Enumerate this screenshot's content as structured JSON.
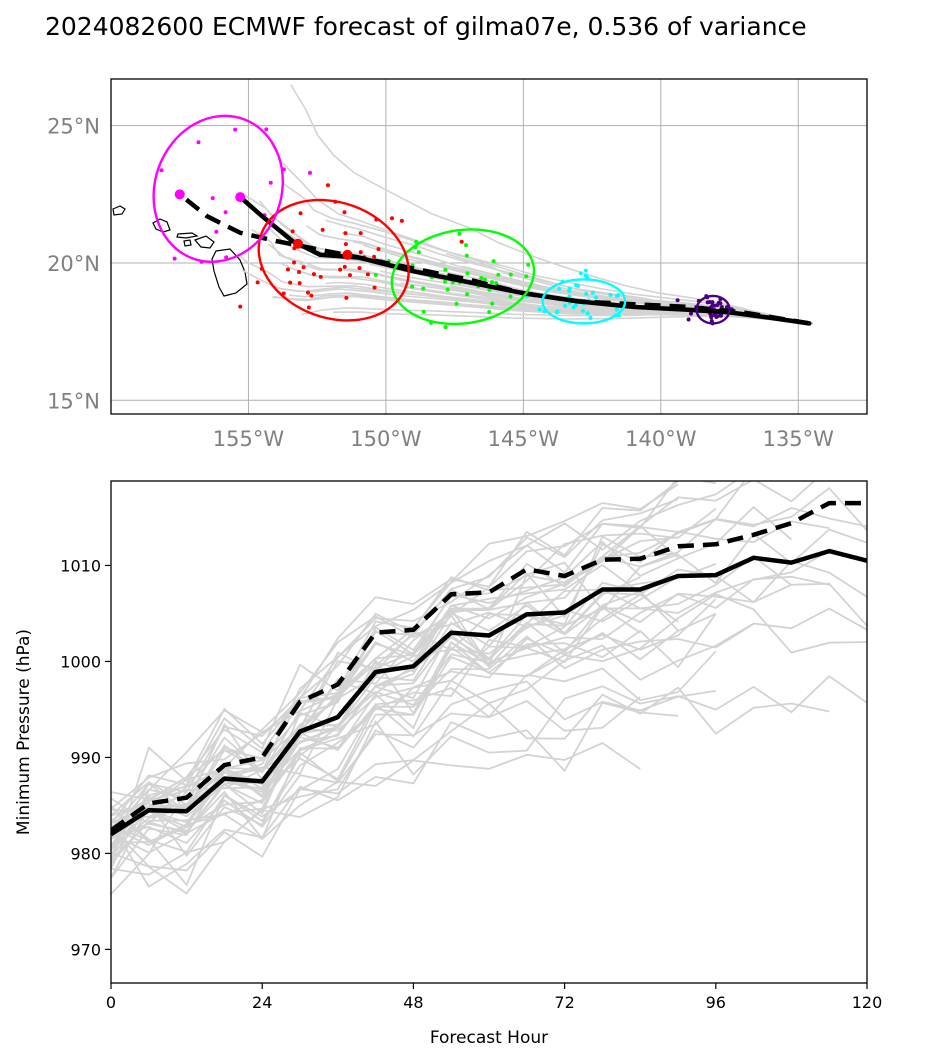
{
  "title": "2024082600 ECMWF forecast of gilma07e, 0.536 of variance",
  "chart_data": [
    {
      "type": "map-tracks",
      "lon_range": [
        -160,
        -132.5
      ],
      "lat_range": [
        14.5,
        26.7
      ],
      "lon_ticks": [
        -155,
        -150,
        -145,
        -140,
        -135
      ],
      "lon_tick_labels": [
        "155°W",
        "150°W",
        "145°W",
        "140°W",
        "135°W"
      ],
      "lat_ticks": [
        15,
        20,
        25
      ],
      "lat_tick_labels": [
        "15°N",
        "20°N",
        "25°N"
      ],
      "grid": true,
      "colors": {
        "ensemble": "#d3d3d3",
        "mean": "#000000",
        "t0": "#4b0082",
        "t1": "#00ffff",
        "t2": "#00ff00",
        "t3": "#ff0000",
        "t4": "#ff00ff"
      },
      "mean_track": [
        [
          -134.6,
          17.8
        ],
        [
          -136,
          18.0
        ],
        [
          -137.5,
          18.2
        ],
        [
          -139,
          18.3
        ],
        [
          -141,
          18.4
        ],
        [
          -143,
          18.6
        ],
        [
          -145,
          18.9
        ],
        [
          -147,
          19.3
        ],
        [
          -149,
          19.7
        ],
        [
          -151,
          20.2
        ],
        [
          -152.4,
          20.3
        ],
        [
          -153.4,
          20.8
        ],
        [
          -154.5,
          21.7
        ],
        [
          -155.3,
          22.4
        ]
      ],
      "dashed_track": [
        [
          -134.6,
          17.8
        ],
        [
          -137,
          18.2
        ],
        [
          -139,
          18.4
        ],
        [
          -141,
          18.5
        ],
        [
          -143,
          18.6
        ],
        [
          -145,
          18.9
        ],
        [
          -147,
          19.4
        ],
        [
          -149,
          19.8
        ],
        [
          -151,
          20.2
        ],
        [
          -152.5,
          20.5
        ],
        [
          -154,
          20.8
        ],
        [
          -155.3,
          21.1
        ],
        [
          -156.5,
          21.7
        ],
        [
          -157.5,
          22.5
        ]
      ],
      "ellipses": [
        {
          "color_key": "t0",
          "lon": -138.1,
          "lat": 18.3,
          "rx_deg": 0.6,
          "ry_deg": 0.5,
          "angle": 0
        },
        {
          "color_key": "t1",
          "lon": -142.8,
          "lat": 18.6,
          "rx_deg": 1.5,
          "ry_deg": 0.8,
          "angle": 0
        },
        {
          "color_key": "t2",
          "lon": -147.2,
          "lat": 19.5,
          "rx_deg": 2.6,
          "ry_deg": 1.7,
          "angle": -8
        },
        {
          "color_key": "t3",
          "lon": -151.9,
          "lat": 20.1,
          "rx_deg": 2.8,
          "ry_deg": 2.1,
          "angle": 20
        },
        {
          "color_key": "t4",
          "lon": -156.1,
          "lat": 22.7,
          "rx_deg": 2.3,
          "ry_deg": 2.7,
          "angle": 20
        }
      ],
      "mean_markers": [
        {
          "color_key": "t3",
          "lon": -153.2,
          "lat": 20.7
        },
        {
          "color_key": "t3",
          "lon": -151.4,
          "lat": 20.3
        },
        {
          "color_key": "t4",
          "lon": -155.3,
          "lat": 22.4
        },
        {
          "color_key": "t4",
          "lon": -157.5,
          "lat": 22.5
        }
      ]
    },
    {
      "type": "line",
      "xlabel": "Forecast Hour",
      "ylabel": "Minimum Pressure (hPa)",
      "xlim": [
        0,
        120
      ],
      "ylim": [
        966.5,
        1018.8
      ],
      "x_ticks": [
        0,
        24,
        48,
        72,
        96,
        120
      ],
      "y_ticks": [
        970,
        980,
        990,
        1000,
        1010
      ],
      "x": [
        0,
        6,
        12,
        18,
        24,
        30,
        36,
        42,
        48,
        54,
        60,
        66,
        72,
        78,
        84,
        90,
        96,
        102,
        108,
        114,
        120
      ],
      "series": [
        {
          "style": "solid",
          "color": "#000000",
          "values": [
            982,
            984.5,
            984.4,
            987.8,
            987.5,
            992.7,
            994.2,
            998.9,
            999.5,
            1003,
            1002.7,
            1004.9,
            1005.1,
            1007.5,
            1007.5,
            1008.9,
            1009,
            1010.8,
            1010.3,
            1011.5,
            1010.5
          ]
        },
        {
          "style": "dashed",
          "color": "#000000",
          "values": [
            982.4,
            985.2,
            985.8,
            989.2,
            990,
            995.8,
            997.6,
            1003,
            1003.3,
            1007,
            1007.2,
            1009.6,
            1008.9,
            1010.6,
            1010.7,
            1012,
            1012.2,
            1013.2,
            1014.4,
            1016.5,
            1016.5
          ]
        }
      ]
    }
  ]
}
